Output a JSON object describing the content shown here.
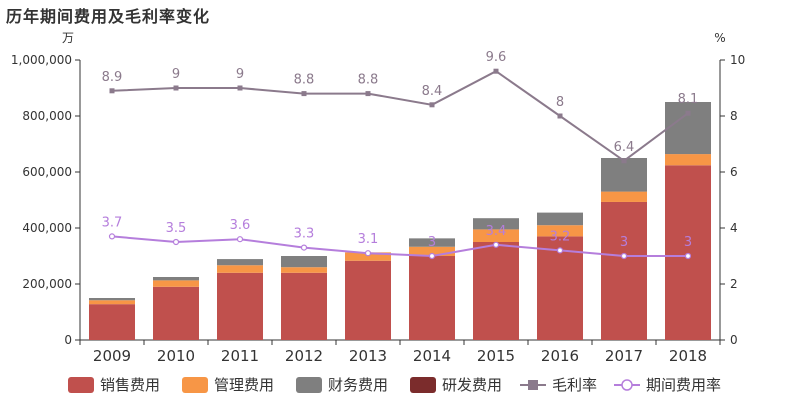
{
  "title": "历年期间费用及毛利率变化",
  "chart_data": {
    "type": "bar",
    "stacked": true,
    "categories": [
      "2009",
      "2010",
      "2011",
      "2012",
      "2013",
      "2014",
      "2015",
      "2016",
      "2017",
      "2018"
    ],
    "left_axis": {
      "unit": "万",
      "ylim": [
        0,
        1000000
      ],
      "ticks": [
        0,
        200000,
        400000,
        600000,
        800000,
        1000000
      ],
      "tick_labels": [
        "0",
        "200,000",
        "400,000",
        "600,000",
        "800,000",
        "1,000,000"
      ]
    },
    "right_axis": {
      "unit": "%",
      "ylim": [
        0,
        10
      ],
      "ticks": [
        0,
        2,
        4,
        6,
        8,
        10
      ],
      "tick_labels": [
        "0",
        "2",
        "4",
        "6",
        "8",
        "10"
      ]
    },
    "series": [
      {
        "name": "销售费用",
        "type": "bar",
        "axis": "left",
        "color": "#c0504d",
        "values": [
          128000,
          190000,
          240000,
          240000,
          283000,
          300000,
          350000,
          370000,
          493000,
          624000
        ]
      },
      {
        "name": "管理费用",
        "type": "bar",
        "axis": "left",
        "color": "#f79646",
        "values": [
          14000,
          23000,
          27000,
          20000,
          30000,
          33000,
          45000,
          40000,
          37000,
          40000
        ]
      },
      {
        "name": "财务费用",
        "type": "bar",
        "axis": "left",
        "color": "#7f7f7f",
        "values": [
          8000,
          12000,
          22000,
          40000,
          0,
          30000,
          40000,
          45000,
          120000,
          186000
        ]
      },
      {
        "name": "研发费用",
        "type": "bar",
        "axis": "left",
        "color": "#7b2c2c",
        "values": [
          0,
          0,
          0,
          0,
          0,
          0,
          0,
          0,
          0,
          0
        ]
      },
      {
        "name": "毛利率",
        "type": "line",
        "axis": "right",
        "color": "#8b7a8c",
        "marker": "square",
        "values": [
          8.9,
          9,
          9,
          8.8,
          8.8,
          8.4,
          9.6,
          8,
          6.4,
          8.1
        ],
        "labels": [
          "8.9",
          "9",
          "9",
          "8.8",
          "8.8",
          "8.4",
          "9.6",
          "8",
          "6.4",
          "8.1"
        ]
      },
      {
        "name": "期间费用率",
        "type": "line",
        "axis": "right",
        "color": "#b57edc",
        "marker": "circle",
        "values": [
          3.7,
          3.5,
          3.6,
          3.3,
          3.1,
          3,
          3.4,
          3.2,
          3,
          3
        ],
        "labels": [
          "3.7",
          "3.5",
          "3.6",
          "3.3",
          "3.1",
          "3",
          "3.4",
          "3.2",
          "3",
          "3"
        ]
      }
    ],
    "legend_position": "bottom",
    "grid": false
  }
}
